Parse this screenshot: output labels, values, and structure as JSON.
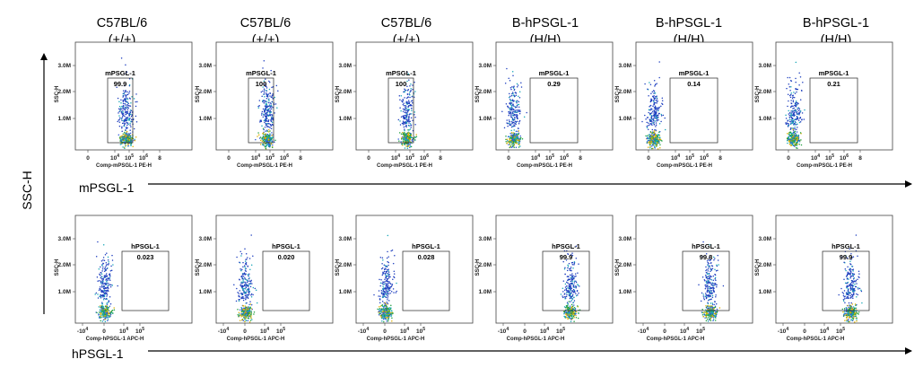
{
  "columns": [
    {
      "line1": "C57BL/6",
      "line2": "(+/+)"
    },
    {
      "line1": "C57BL/6",
      "line2": "(+/+)"
    },
    {
      "line1": "C57BL/6",
      "line2": "(+/+)"
    },
    {
      "line1": "B-hPSGL-1",
      "line2": "(H/H)"
    },
    {
      "line1": "B-hPSGL-1",
      "line2": "(H/H)"
    },
    {
      "line1": "B-hPSGL-1",
      "line2": "(H/H)"
    }
  ],
  "y_axis_label": "SSC-H",
  "row_labels": [
    "mPSGL-1",
    "hPSGL-1"
  ],
  "chart_data": [
    {
      "type": "scatter",
      "row": "mPSGL-1",
      "xlabel": "Comp-mPSGL-1 PE-H",
      "ylabel": "SSC-H",
      "x_ticks": [
        "0",
        "10^4",
        "10^5",
        "10^6",
        "8"
      ],
      "y_ticks": [
        "3.0M",
        "2.0M",
        "1.0M"
      ],
      "gate_name": "mPSGL-1",
      "panels": [
        {
          "column": "C57BL/6 (+/+)",
          "gate_percent": "99.9"
        },
        {
          "column": "C57BL/6 (+/+)",
          "gate_percent": "100"
        },
        {
          "column": "C57BL/6 (+/+)",
          "gate_percent": "100"
        },
        {
          "column": "B-hPSGL-1 (H/H)",
          "gate_percent": "0.29"
        },
        {
          "column": "B-hPSGL-1 (H/H)",
          "gate_percent": "0.14"
        },
        {
          "column": "B-hPSGL-1 (H/H)",
          "gate_percent": "0.21"
        }
      ]
    },
    {
      "type": "scatter",
      "row": "hPSGL-1",
      "xlabel": "Comp-hPSGL-1 APC-H",
      "ylabel": "SSC-H",
      "x_ticks": [
        "-10^4",
        "0",
        "10^4",
        "10^5"
      ],
      "y_ticks": [
        "3.0M",
        "2.0M",
        "1.0M"
      ],
      "gate_name": "hPSGL-1",
      "panels": [
        {
          "column": "C57BL/6 (+/+)",
          "gate_percent": "0.023"
        },
        {
          "column": "C57BL/6 (+/+)",
          "gate_percent": "0.020"
        },
        {
          "column": "C57BL/6 (+/+)",
          "gate_percent": "0.028"
        },
        {
          "column": "B-hPSGL-1 (H/H)",
          "gate_percent": "99.9"
        },
        {
          "column": "B-hPSGL-1 (H/H)",
          "gate_percent": "99.8"
        },
        {
          "column": "B-hPSGL-1 (H/H)",
          "gate_percent": "99.9"
        }
      ]
    }
  ]
}
